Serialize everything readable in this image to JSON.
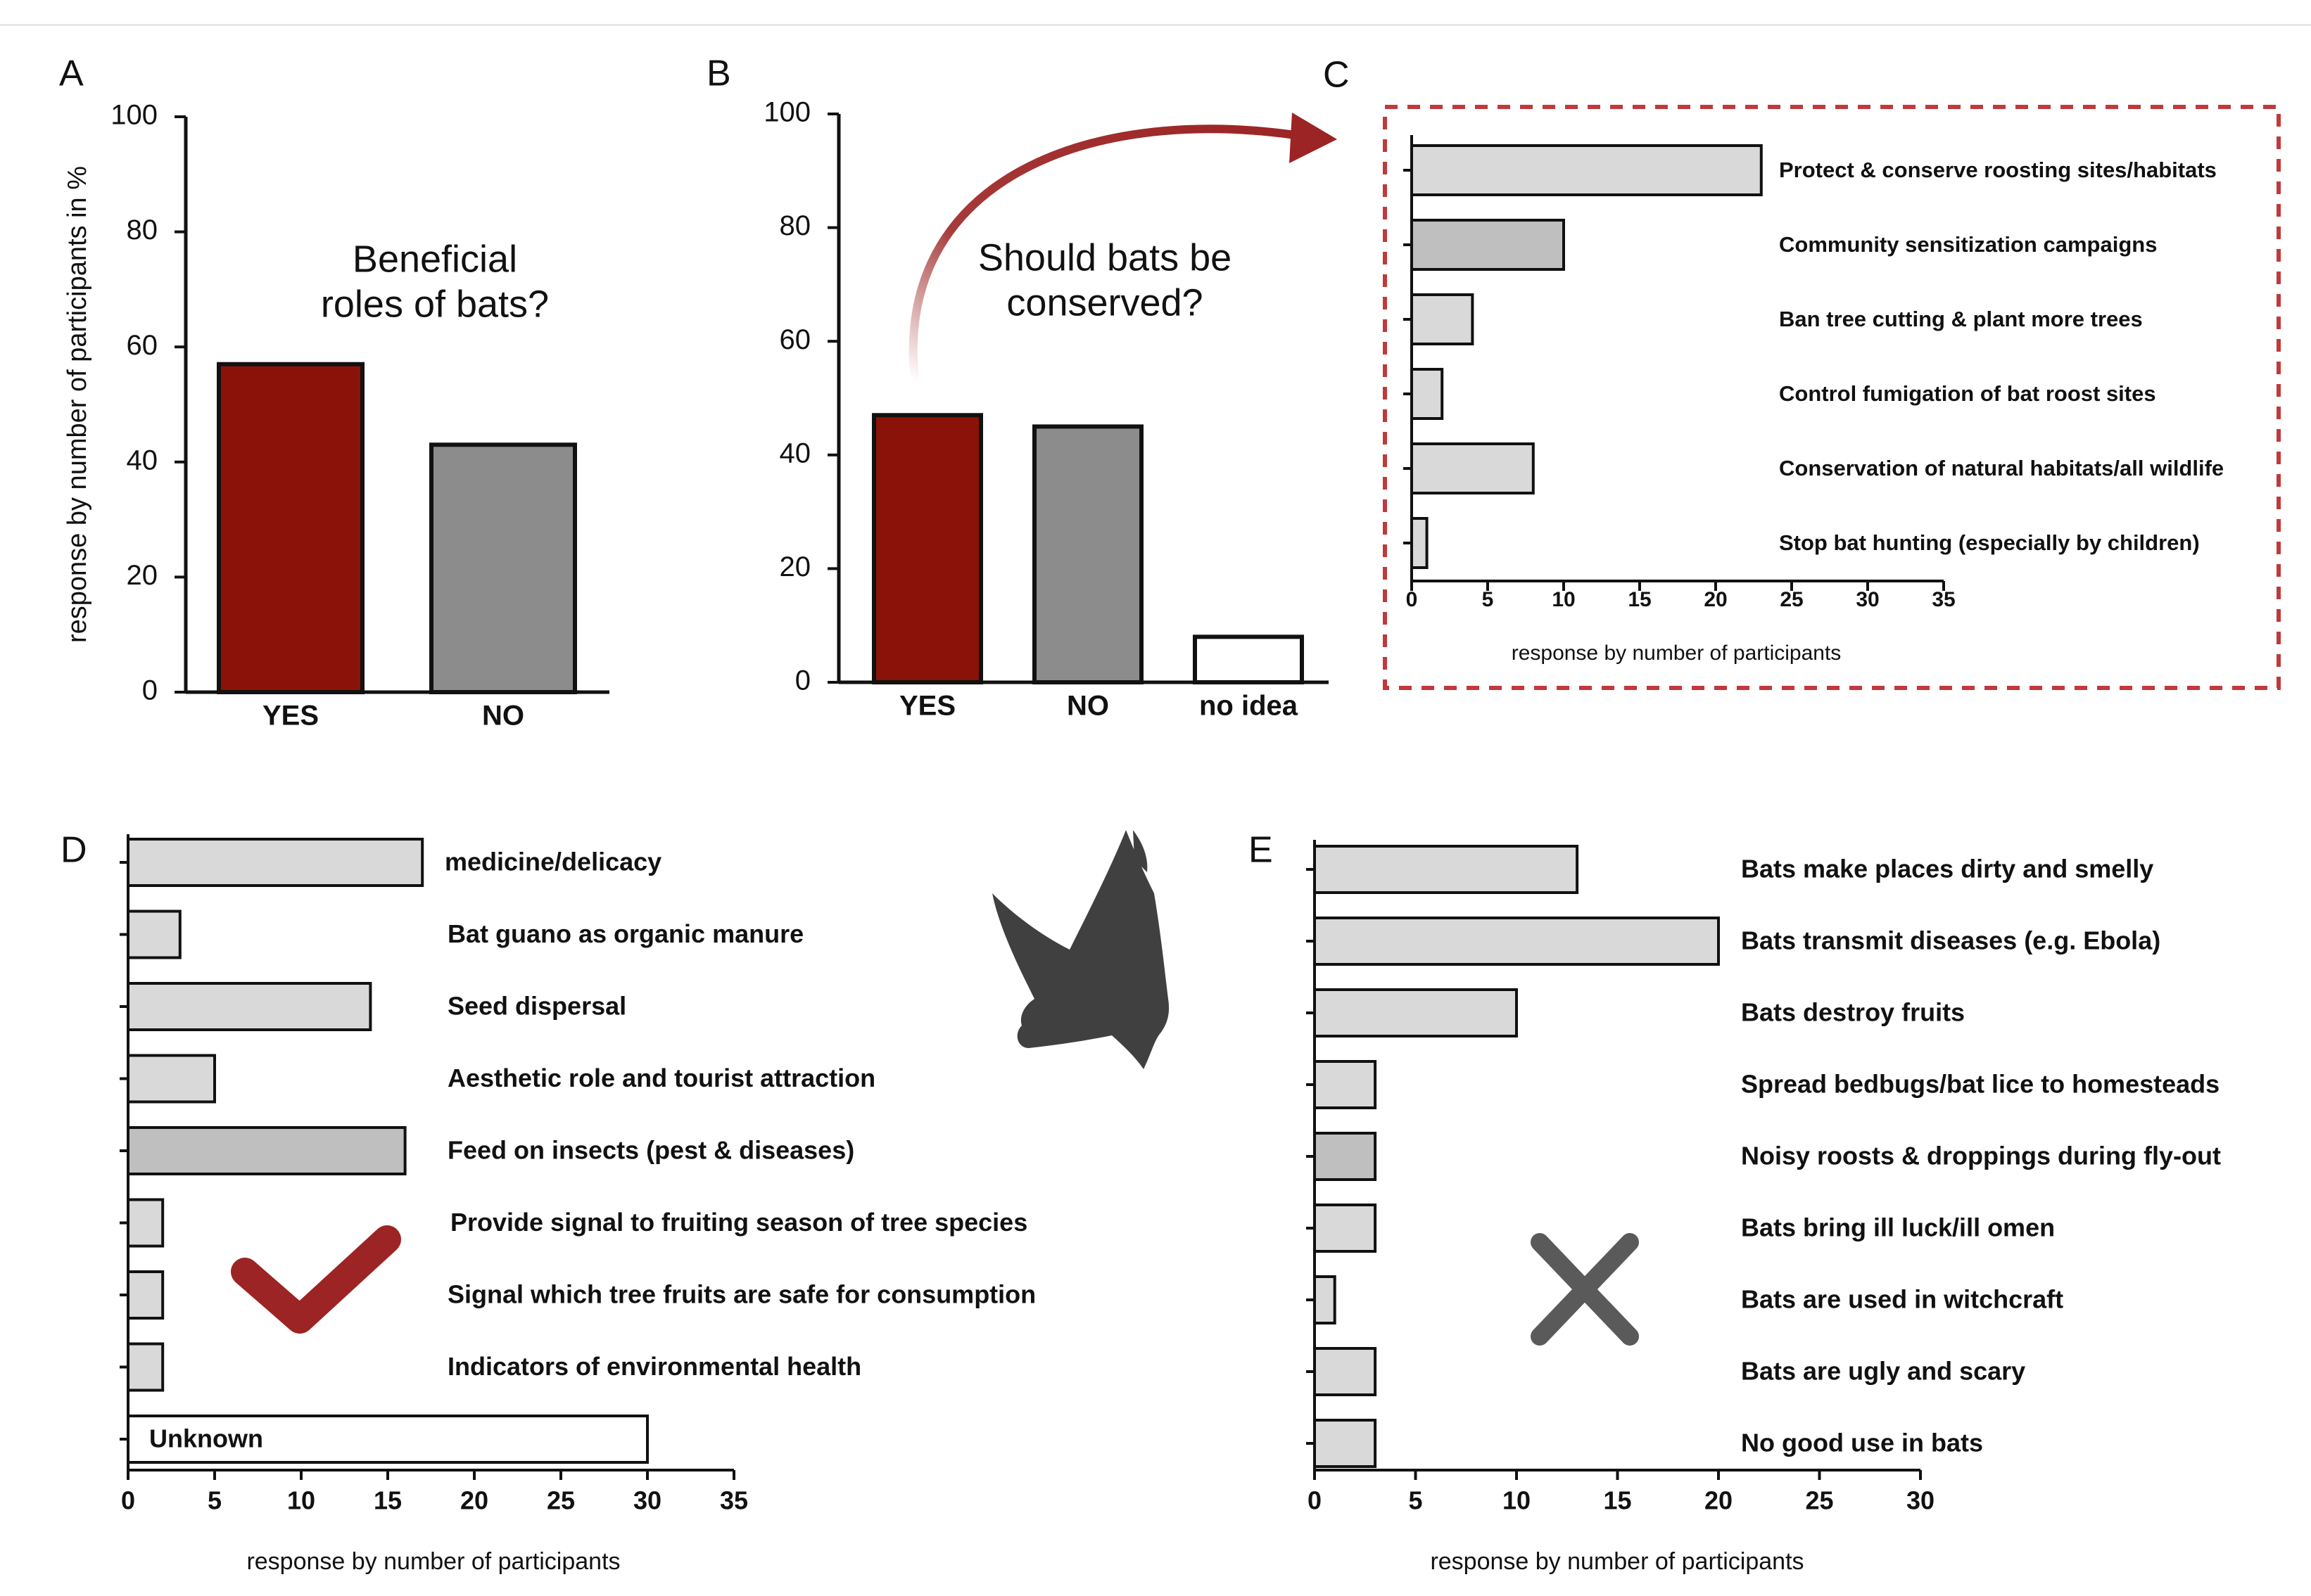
{
  "colors": {
    "red": "#8b1208",
    "dark_grey": "#8c8c8c",
    "light_grey": "#d9d9d9",
    "mid_grey": "#bfbfbf",
    "white": "#ffffff",
    "dashed_box": "#c0393b",
    "icon_grey": "#404040",
    "check_red": "#9c2424",
    "cross_grey": "#5a5a5a"
  },
  "icons": {
    "bat": "bat-icon",
    "check": "checkmark-icon",
    "cross": "cross-icon",
    "arrow": "curved-arrow-icon"
  },
  "chart_data": [
    {
      "panel": "A",
      "type": "bar",
      "title": "Beneficial roles of bats?",
      "title_lines": [
        "Beneficial",
        "roles of bats?"
      ],
      "ylabel": "response by number of participants in %",
      "categories": [
        "YES",
        "NO"
      ],
      "values": [
        57,
        43
      ],
      "bar_colors": [
        "red",
        "dark_grey"
      ],
      "ylim": [
        0,
        100
      ],
      "yticks": [
        0,
        20,
        40,
        60,
        80,
        100
      ]
    },
    {
      "panel": "B",
      "type": "bar",
      "title": "Should bats be conserved?",
      "title_lines": [
        "Should bats be",
        "conserved?"
      ],
      "categories": [
        "YES",
        "NO",
        "no idea"
      ],
      "values": [
        47,
        45,
        8
      ],
      "bar_colors": [
        "red",
        "dark_grey",
        "white"
      ],
      "ylim": [
        0,
        100
      ],
      "yticks": [
        0,
        20,
        40,
        60,
        80,
        100
      ]
    },
    {
      "panel": "C",
      "type": "bar",
      "orientation": "horizontal",
      "xlabel": "response by number of participants",
      "categories": [
        "Protect & conserve roosting sites/habitats",
        "Community sensitization campaigns",
        "Ban tree cutting & plant more trees",
        "Control fumigation of bat roost sites",
        "Conservation of natural habitats/all wildlife",
        "Stop bat hunting (especially by children)"
      ],
      "values": [
        23,
        10,
        4,
        2,
        8,
        1
      ],
      "bar_colors": [
        "light_grey",
        "mid_grey",
        "light_grey",
        "light_grey",
        "light_grey",
        "light_grey"
      ],
      "xlim": [
        0,
        35
      ],
      "xticks": [
        0,
        5,
        10,
        15,
        20,
        25,
        30,
        35
      ]
    },
    {
      "panel": "D",
      "type": "bar",
      "orientation": "horizontal",
      "xlabel": "response by number of participants",
      "categories": [
        "medicine/delicacy",
        "Bat guano as organic manure",
        "Seed dispersal",
        "Aesthetic role and tourist attraction",
        "Feed on insects (pest & diseases)",
        "Provide signal to fruiting season of tree species",
        "Signal which tree fruits are safe for consumption",
        "Indicators of environmental health",
        "Unknown"
      ],
      "values": [
        17,
        3,
        14,
        5,
        16,
        2,
        2,
        2,
        30
      ],
      "bar_colors": [
        "light_grey",
        "light_grey",
        "light_grey",
        "light_grey",
        "mid_grey",
        "light_grey",
        "light_grey",
        "light_grey",
        "white"
      ],
      "xlim": [
        0,
        35
      ],
      "xticks": [
        0,
        5,
        10,
        15,
        20,
        25,
        30,
        35
      ]
    },
    {
      "panel": "E",
      "type": "bar",
      "orientation": "horizontal",
      "xlabel": "response by number of participants",
      "categories": [
        "Bats make places dirty and smelly",
        "Bats transmit diseases (e.g. Ebola)",
        "Bats destroy fruits",
        "Spread bedbugs/bat lice to homesteads",
        "Noisy roosts & droppings during fly-out",
        "Bats bring ill luck/ill omen",
        "Bats are used in witchcraft",
        "Bats are ugly and scary",
        "No good use in bats"
      ],
      "values": [
        13,
        20,
        10,
        3,
        3,
        3,
        1,
        3,
        3
      ],
      "bar_colors": [
        "light_grey",
        "light_grey",
        "light_grey",
        "light_grey",
        "mid_grey",
        "light_grey",
        "light_grey",
        "light_grey",
        "light_grey"
      ],
      "xlim": [
        0,
        30
      ],
      "xticks": [
        0,
        5,
        10,
        15,
        20,
        25,
        30
      ]
    }
  ]
}
